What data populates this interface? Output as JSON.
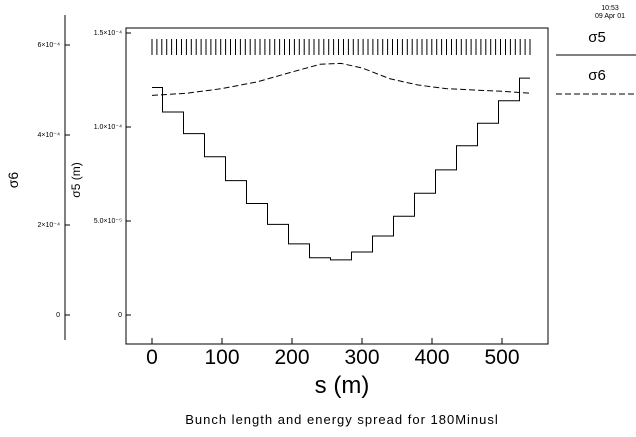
{
  "timestamp": {
    "time": "10:53",
    "date": "09 Apr 01"
  },
  "caption": "Bunch length and energy spread for 180Minusl",
  "colors": {
    "ink": "#000000",
    "background": "#ffffff"
  },
  "chart_data": {
    "type": "line",
    "xlabel": "s (m)",
    "xlim": [
      0,
      540
    ],
    "x_ticks": [
      "0",
      "100",
      "200",
      "300",
      "400",
      "500"
    ],
    "ylabel_left": "σ6",
    "ylim_left": [
      0,
      0.00064
    ],
    "y_ticks_left": [
      "0",
      "2×10⁻⁴",
      "4×10⁻⁴",
      "6×10⁻⁴"
    ],
    "ylabel_inner": "σ5 (m)",
    "ylim_inner": [
      0,
      0.000152
    ],
    "y_ticks_inner": [
      "0",
      "5.0×10⁻⁵",
      "1.0×10⁻⁴",
      "1.5×10⁻⁴"
    ],
    "grid": false,
    "legend_position": "right",
    "legend": [
      {
        "label": "σ5",
        "style": "solid"
      },
      {
        "label": "σ6",
        "style": "dashed"
      }
    ],
    "series": [
      {
        "name": "σ5",
        "style": "solid",
        "axis": "inner",
        "x": [
          0,
          15,
          15,
          45,
          45,
          75,
          75,
          105,
          105,
          135,
          135,
          165,
          165,
          195,
          195,
          225,
          225,
          255,
          255,
          285,
          285,
          315,
          315,
          345,
          345,
          375,
          375,
          405,
          405,
          435,
          435,
          465,
          465,
          495,
          495,
          525,
          525,
          540
        ],
        "y": [
          0.000121,
          0.000121,
          0.000108,
          0.000108,
          9.65e-05,
          9.65e-05,
          8.42e-05,
          8.42e-05,
          7.15e-05,
          7.15e-05,
          5.93e-05,
          5.93e-05,
          4.82e-05,
          4.82e-05,
          3.78e-05,
          3.78e-05,
          3.05e-05,
          3.05e-05,
          2.93e-05,
          2.93e-05,
          3.35e-05,
          3.35e-05,
          4.2e-05,
          4.2e-05,
          5.25e-05,
          5.25e-05,
          6.48e-05,
          6.48e-05,
          7.72e-05,
          7.72e-05,
          9e-05,
          9e-05,
          0.000102,
          0.000102,
          0.000114,
          0.000114,
          0.000126,
          0.000126
        ]
      },
      {
        "name": "σ6",
        "style": "dashed",
        "axis": "left",
        "x": [
          0,
          50,
          100,
          150,
          200,
          240,
          270,
          300,
          340,
          380,
          420,
          460,
          500,
          540
        ],
        "y": [
          0.000488,
          0.000493,
          0.000503,
          0.000518,
          0.00054,
          0.000557,
          0.000559,
          0.000549,
          0.000525,
          0.000511,
          0.000503,
          0.0005,
          0.000497,
          0.000493
        ]
      }
    ],
    "element_markers": {
      "description_style": "two rows of short vertical bars",
      "row_count": 2
    }
  }
}
